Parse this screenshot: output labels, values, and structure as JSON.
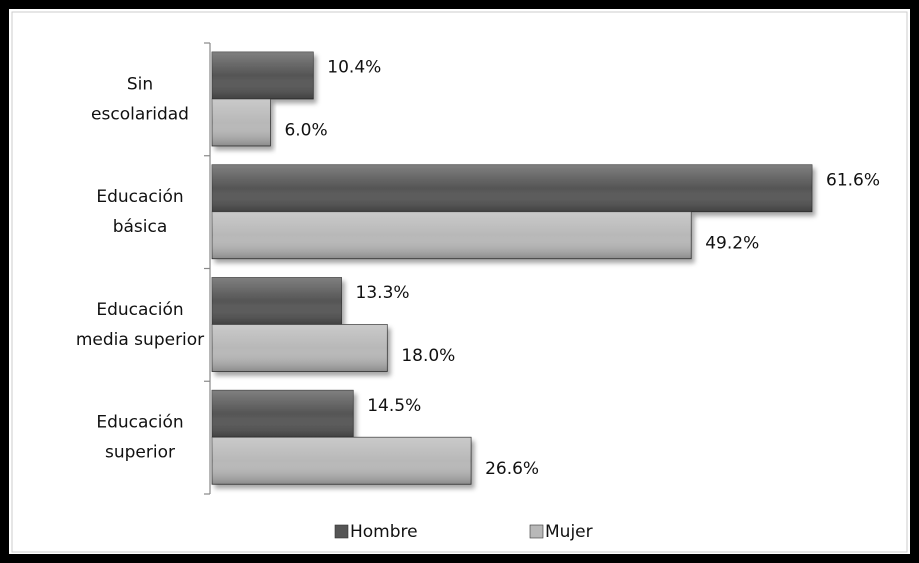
{
  "chart_data": {
    "type": "bar",
    "orientation": "horizontal",
    "categories": [
      [
        "Sin",
        "escolaridad"
      ],
      [
        "Educación",
        "básica"
      ],
      [
        "Educación",
        "media superior"
      ],
      [
        "Educación",
        "superior"
      ]
    ],
    "series": [
      {
        "name": "Hombre",
        "color": "#555555",
        "values": [
          10.4,
          61.6,
          13.3,
          14.5
        ],
        "value_labels": [
          "10.4%",
          "61.6%",
          "13.3%",
          "14.5%"
        ]
      },
      {
        "name": "Mujer",
        "color": "#b8b8b8",
        "values": [
          6.0,
          49.2,
          18.0,
          26.6
        ],
        "value_labels": [
          "6.0%",
          "49.2%",
          "18.0%",
          "26.6%"
        ]
      }
    ],
    "xlim": [
      0,
      63
    ],
    "legend": "bottom"
  }
}
